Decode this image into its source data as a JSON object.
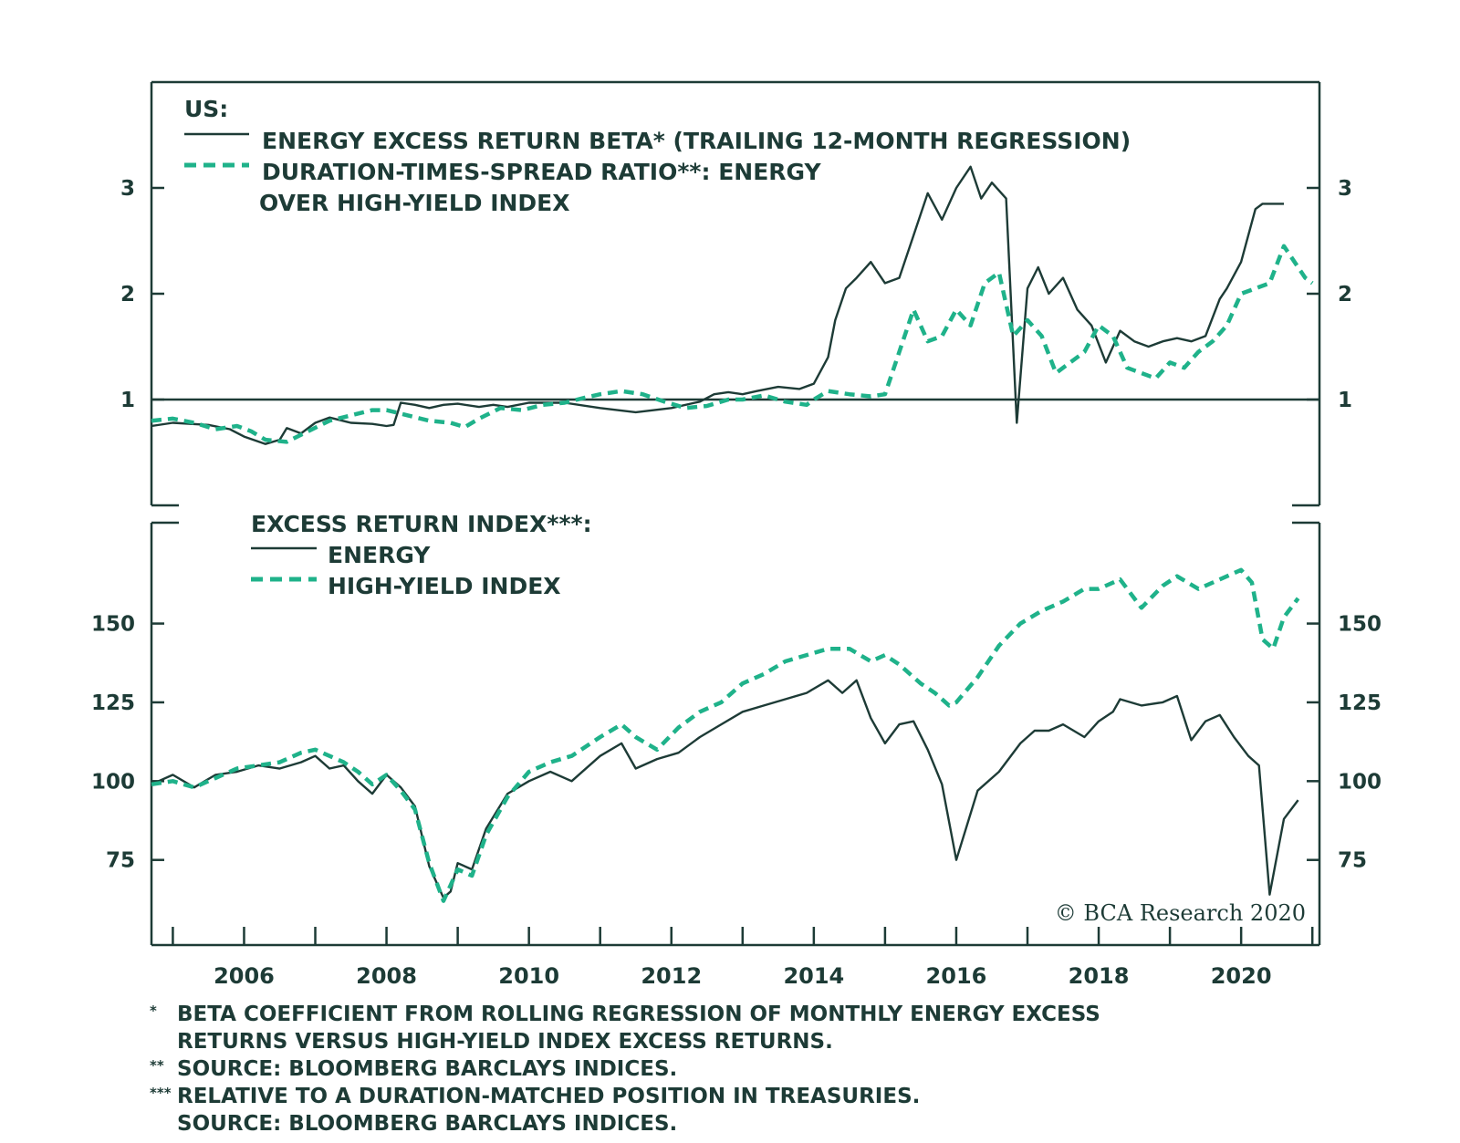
{
  "colors": {
    "ink": "#1d3b36",
    "accent": "#1fb28a",
    "background": "#ffffff"
  },
  "top_panel": {
    "legend_title": "US:",
    "legend_series_1": "ENERGY EXCESS RETURN BETA* (TRAILING 12-MONTH REGRESSION)",
    "legend_series_2_line1": "DURATION-TIMES-SPREAD RATIO**: ENERGY",
    "legend_series_2_line2": "OVER HIGH-YIELD INDEX"
  },
  "bottom_panel": {
    "legend_title": "EXCESS RETURN INDEX***:",
    "legend_series_1": "ENERGY",
    "legend_series_2": "HIGH-YIELD INDEX"
  },
  "watermark": "© BCA Research 2020",
  "footnotes": [
    {
      "marker": "*",
      "lines": [
        "BETA COEFFICIENT FROM ROLLING REGRESSION OF MONTHLY ENERGY EXCESS",
        "RETURNS VERSUS HIGH-YIELD INDEX EXCESS RETURNS."
      ]
    },
    {
      "marker": "**",
      "lines": [
        "SOURCE: BLOOMBERG BARCLAYS INDICES."
      ]
    },
    {
      "marker": "***",
      "lines": [
        "RELATIVE TO A DURATION-MATCHED POSITION IN TREASURIES.",
        "SOURCE: BLOOMBERG BARCLAYS INDICES."
      ]
    }
  ],
  "chart_data": [
    {
      "type": "line",
      "ylim": [
        0,
        4
      ],
      "yticks": [
        1,
        2,
        3
      ],
      "ytick_labels": [
        "1",
        "2",
        "3"
      ],
      "xlim": [
        2004.7,
        2021.1
      ],
      "reference_line": 1,
      "series": [
        {
          "name": "ENERGY EXCESS RETURN BETA* (TRAILING 12-MONTH REGRESSION)",
          "style": "solid",
          "x": [
            2004.7,
            2005.0,
            2005.5,
            2005.8,
            2006.0,
            2006.3,
            2006.5,
            2006.6,
            2006.8,
            2007.0,
            2007.2,
            2007.5,
            2007.8,
            2008.0,
            2008.1,
            2008.2,
            2008.4,
            2008.6,
            2008.8,
            2009.0,
            2009.3,
            2009.5,
            2009.7,
            2010.0,
            2010.5,
            2011.0,
            2011.5,
            2012.0,
            2012.4,
            2012.6,
            2012.8,
            2013.0,
            2013.2,
            2013.5,
            2013.8,
            2014.0,
            2014.2,
            2014.3,
            2014.45,
            2014.6,
            2014.8,
            2015.0,
            2015.2,
            2015.4,
            2015.6,
            2015.8,
            2016.0,
            2016.2,
            2016.35,
            2016.5,
            2016.7,
            2016.85,
            2017.0,
            2017.15,
            2017.3,
            2017.5,
            2017.7,
            2017.9,
            2018.1,
            2018.3,
            2018.5,
            2018.7,
            2018.9,
            2019.1,
            2019.3,
            2019.5,
            2019.7,
            2019.8,
            2020.0,
            2020.2,
            2020.3,
            2020.5,
            2020.6
          ],
          "y": [
            0.75,
            0.78,
            0.76,
            0.72,
            0.65,
            0.58,
            0.62,
            0.73,
            0.68,
            0.78,
            0.83,
            0.78,
            0.77,
            0.75,
            0.76,
            0.97,
            0.95,
            0.92,
            0.95,
            0.96,
            0.93,
            0.95,
            0.93,
            0.97,
            0.97,
            0.92,
            0.88,
            0.92,
            0.98,
            1.05,
            1.07,
            1.05,
            1.08,
            1.12,
            1.1,
            1.15,
            1.4,
            1.75,
            2.05,
            2.15,
            2.3,
            2.1,
            2.15,
            2.55,
            2.95,
            2.7,
            3.0,
            3.2,
            2.9,
            3.05,
            2.9,
            0.78,
            2.05,
            2.25,
            2.0,
            2.15,
            1.85,
            1.7,
            1.35,
            1.65,
            1.55,
            1.5,
            1.55,
            1.58,
            1.55,
            1.6,
            1.95,
            2.05,
            2.3,
            2.8,
            2.85,
            2.85,
            2.85
          ]
        },
        {
          "name": "DURATION-TIMES-SPREAD RATIO**: ENERGY OVER HIGH-YIELD INDEX",
          "style": "dashed",
          "x": [
            2004.7,
            2005.0,
            2005.3,
            2005.6,
            2005.9,
            2006.1,
            2006.3,
            2006.6,
            2006.9,
            2007.2,
            2007.5,
            2007.8,
            2008.0,
            2008.3,
            2008.6,
            2008.9,
            2009.1,
            2009.3,
            2009.6,
            2009.9,
            2010.2,
            2010.5,
            2010.8,
            2011.0,
            2011.3,
            2011.6,
            2011.9,
            2012.2,
            2012.5,
            2012.8,
            2013.0,
            2013.3,
            2013.6,
            2013.9,
            2014.0,
            2014.2,
            2014.5,
            2014.8,
            2015.0,
            2015.2,
            2015.4,
            2015.6,
            2015.8,
            2016.0,
            2016.2,
            2016.4,
            2016.6,
            2016.8,
            2017.0,
            2017.2,
            2017.4,
            2017.6,
            2017.8,
            2018.0,
            2018.2,
            2018.4,
            2018.6,
            2018.8,
            2019.0,
            2019.2,
            2019.4,
            2019.6,
            2019.8,
            2020.0,
            2020.2,
            2020.4,
            2020.6,
            2020.8,
            2020.9,
            2021.0
          ],
          "y": [
            0.8,
            0.82,
            0.78,
            0.72,
            0.75,
            0.7,
            0.62,
            0.6,
            0.7,
            0.8,
            0.85,
            0.9,
            0.9,
            0.85,
            0.8,
            0.78,
            0.74,
            0.82,
            0.92,
            0.9,
            0.95,
            0.97,
            1.02,
            1.05,
            1.08,
            1.05,
            0.98,
            0.92,
            0.94,
            1.0,
            1.0,
            1.04,
            0.98,
            0.95,
            1.0,
            1.08,
            1.05,
            1.03,
            1.05,
            1.45,
            1.85,
            1.55,
            1.6,
            1.85,
            1.7,
            2.1,
            2.2,
            1.6,
            1.75,
            1.6,
            1.25,
            1.35,
            1.45,
            1.7,
            1.6,
            1.3,
            1.25,
            1.2,
            1.35,
            1.3,
            1.45,
            1.55,
            1.7,
            2.0,
            2.05,
            2.1,
            2.45,
            2.25,
            2.15,
            2.1
          ]
        }
      ]
    },
    {
      "type": "line",
      "ylim": [
        48,
        182
      ],
      "yticks": [
        75,
        100,
        125,
        150
      ],
      "ytick_labels": [
        "75",
        "100",
        "125",
        "150"
      ],
      "xlim": [
        2004.7,
        2021.1
      ],
      "xticks": [
        2006,
        2008,
        2010,
        2012,
        2014,
        2016,
        2018,
        2020
      ],
      "xtick_labels": [
        "2006",
        "2008",
        "2010",
        "2012",
        "2014",
        "2016",
        "2018",
        "2020"
      ],
      "xminor_ticks": [
        2005,
        2006,
        2007,
        2008,
        2009,
        2010,
        2011,
        2012,
        2013,
        2014,
        2015,
        2016,
        2017,
        2018,
        2019,
        2020,
        2021
      ],
      "series": [
        {
          "name": "ENERGY",
          "style": "solid",
          "x": [
            2004.7,
            2005.0,
            2005.3,
            2005.6,
            2005.9,
            2006.2,
            2006.5,
            2006.8,
            2007.0,
            2007.2,
            2007.4,
            2007.6,
            2007.8,
            2008.0,
            2008.2,
            2008.4,
            2008.6,
            2008.8,
            2008.9,
            2009.0,
            2009.2,
            2009.4,
            2009.7,
            2010.0,
            2010.3,
            2010.6,
            2011.0,
            2011.3,
            2011.5,
            2011.8,
            2012.1,
            2012.4,
            2012.7,
            2013.0,
            2013.3,
            2013.6,
            2013.9,
            2014.2,
            2014.4,
            2014.6,
            2014.8,
            2015.0,
            2015.2,
            2015.4,
            2015.6,
            2015.8,
            2016.0,
            2016.3,
            2016.6,
            2016.9,
            2017.1,
            2017.3,
            2017.5,
            2017.8,
            2018.0,
            2018.2,
            2018.3,
            2018.6,
            2018.9,
            2019.1,
            2019.3,
            2019.5,
            2019.7,
            2019.9,
            2020.1,
            2020.25,
            2020.4,
            2020.6,
            2020.8
          ],
          "y": [
            99,
            102,
            98,
            102,
            103,
            105,
            104,
            106,
            108,
            104,
            105,
            100,
            96,
            102,
            98,
            92,
            73,
            63,
            65,
            74,
            72,
            85,
            96,
            100,
            103,
            100,
            108,
            112,
            104,
            107,
            109,
            114,
            118,
            122,
            124,
            126,
            128,
            132,
            128,
            132,
            120,
            112,
            118,
            119,
            110,
            99,
            75,
            97,
            103,
            112,
            116,
            116,
            118,
            114,
            119,
            122,
            126,
            124,
            125,
            127,
            113,
            119,
            121,
            114,
            108,
            105,
            64,
            88,
            94
          ]
        },
        {
          "name": "HIGH-YIELD INDEX",
          "style": "dashed",
          "x": [
            2004.7,
            2005.0,
            2005.3,
            2005.6,
            2005.9,
            2006.2,
            2006.5,
            2006.8,
            2007.0,
            2007.2,
            2007.4,
            2007.6,
            2007.8,
            2008.0,
            2008.2,
            2008.4,
            2008.6,
            2008.8,
            2008.9,
            2009.0,
            2009.2,
            2009.4,
            2009.7,
            2010.0,
            2010.3,
            2010.6,
            2011.0,
            2011.3,
            2011.5,
            2011.8,
            2012.1,
            2012.4,
            2012.7,
            2013.0,
            2013.3,
            2013.6,
            2013.9,
            2014.2,
            2014.5,
            2014.8,
            2015.0,
            2015.2,
            2015.5,
            2015.7,
            2015.9,
            2016.0,
            2016.3,
            2016.6,
            2016.9,
            2017.2,
            2017.5,
            2017.8,
            2018.0,
            2018.3,
            2018.6,
            2018.9,
            2019.1,
            2019.4,
            2019.7,
            2020.0,
            2020.15,
            2020.3,
            2020.45,
            2020.6,
            2020.8
          ],
          "y": [
            99,
            100,
            98,
            101,
            104,
            105,
            106,
            109,
            110,
            108,
            106,
            103,
            99,
            102,
            97,
            91,
            74,
            62,
            67,
            72,
            70,
            83,
            95,
            103,
            106,
            108,
            114,
            118,
            114,
            110,
            117,
            122,
            125,
            131,
            134,
            138,
            140,
            142,
            142,
            138,
            140,
            137,
            131,
            128,
            124,
            125,
            133,
            143,
            150,
            154,
            157,
            161,
            161,
            164,
            155,
            162,
            165,
            161,
            164,
            167,
            163,
            145,
            142,
            152,
            158
          ]
        }
      ]
    }
  ]
}
